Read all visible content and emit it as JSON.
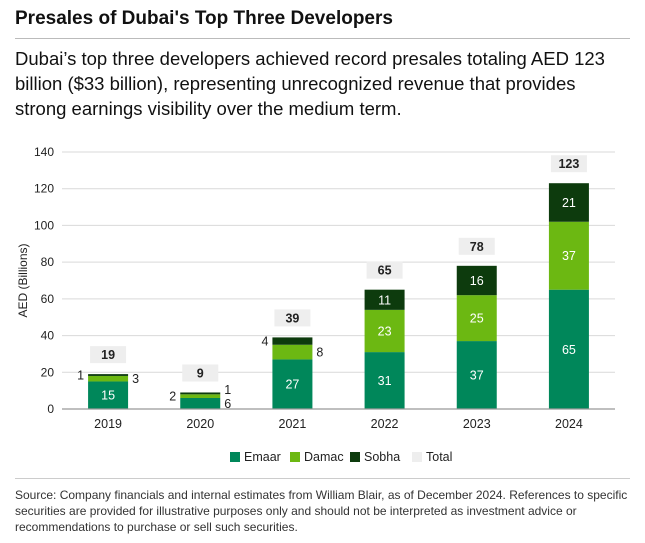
{
  "header": {
    "title": "Presales of Dubai's Top Three Developers",
    "subtitle": "Dubai’s top three developers achieved record presales totaling AED 123 billion ($33 billion), representing unrecognized revenue that provides strong earnings visibility over the medium term."
  },
  "footer": {
    "source": "Source: Company financials and internal estimates from William Blair, as of December 2024. References to specific securities are provided for illustrative purposes only and should not be interpreted as investment advice or recommendations to purchase or sell such securities."
  },
  "chart_data": {
    "type": "bar",
    "stacked": true,
    "categories": [
      "2019",
      "2020",
      "2021",
      "2022",
      "2023",
      "2024"
    ],
    "series": [
      {
        "name": "Emaar",
        "color": "#00875A",
        "values": [
          15,
          6,
          27,
          31,
          37,
          65
        ]
      },
      {
        "name": "Damac",
        "color": "#6CB812",
        "values": [
          3,
          2,
          8,
          23,
          25,
          37
        ]
      },
      {
        "name": "Sobha",
        "color": "#0D3B0D",
        "values": [
          1,
          1,
          4,
          11,
          16,
          21
        ]
      }
    ],
    "totals": {
      "name": "Total",
      "color": "#EEEEEE",
      "values": [
        19,
        9,
        39,
        65,
        78,
        123
      ]
    },
    "ylabel": "AED (Billions)",
    "ylim": [
      0,
      140
    ],
    "yticks": [
      0,
      20,
      40,
      60,
      80,
      100,
      120,
      140
    ],
    "grid": true,
    "legend": "bottom"
  }
}
